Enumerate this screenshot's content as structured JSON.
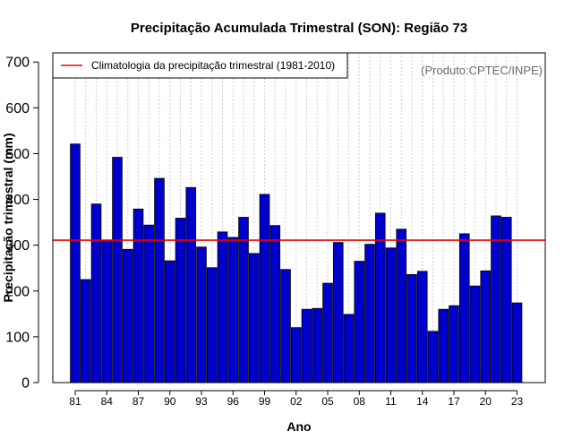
{
  "chart_data": {
    "type": "bar",
    "title": "Precipitação Acumulada Trimestral (SON): Região 73",
    "xlabel": "Ano",
    "ylabel": "Precipitação trimestral (mm)",
    "ylim": [
      0,
      720
    ],
    "yticks": [
      0,
      100,
      200,
      300,
      400,
      500,
      600,
      700
    ],
    "source_note": "(Produto:CPTEC/INPE)",
    "bar_color": "#0000CD",
    "reference_line": {
      "label": "Climatologia da precipitação trimestral (1981-2010)",
      "value": 311,
      "color": "#EE0000"
    },
    "xtick_labels": [
      "81",
      "84",
      "87",
      "90",
      "93",
      "96",
      "99",
      "02",
      "05",
      "08",
      "11",
      "14",
      "17",
      "20",
      "23"
    ],
    "categories": [
      "1981",
      "1982",
      "1983",
      "1984",
      "1985",
      "1986",
      "1987",
      "1988",
      "1989",
      "1990",
      "1991",
      "1992",
      "1993",
      "1994",
      "1995",
      "1996",
      "1997",
      "1998",
      "1999",
      "2000",
      "2001",
      "2002",
      "2003",
      "2004",
      "2005",
      "2006",
      "2007",
      "2008",
      "2009",
      "2010",
      "2011",
      "2012",
      "2013",
      "2014",
      "2015",
      "2016",
      "2017",
      "2018",
      "2019",
      "2020",
      "2021",
      "2022",
      "2023"
    ],
    "values": [
      521,
      225,
      390,
      311,
      492,
      291,
      379,
      344,
      446,
      266,
      359,
      426,
      296,
      251,
      329,
      317,
      361,
      282,
      411,
      343,
      247,
      120,
      160,
      162,
      217,
      306,
      149,
      265,
      302,
      370,
      294,
      335,
      236,
      243,
      112,
      160,
      168,
      325,
      211,
      244,
      364,
      361,
      174
    ]
  }
}
